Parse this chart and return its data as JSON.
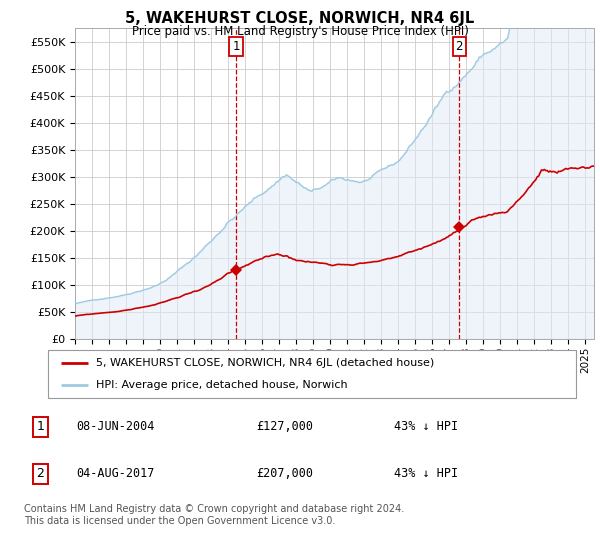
{
  "title": "5, WAKEHURST CLOSE, NORWICH, NR4 6JL",
  "subtitle": "Price paid vs. HM Land Registry's House Price Index (HPI)",
  "hpi_color": "#9ecae1",
  "hpi_fill_color": "#deebf7",
  "price_color": "#cc0000",
  "vline_color": "#cc0000",
  "ylim_min": 0,
  "ylim_max": 575000,
  "yticks": [
    0,
    50000,
    100000,
    150000,
    200000,
    250000,
    300000,
    350000,
    400000,
    450000,
    500000,
    550000
  ],
  "ytick_labels": [
    "£0",
    "£50K",
    "£100K",
    "£150K",
    "£200K",
    "£250K",
    "£300K",
    "£350K",
    "£400K",
    "£450K",
    "£500K",
    "£550K"
  ],
  "legend_entry1": "5, WAKEHURST CLOSE, NORWICH, NR4 6JL (detached house)",
  "legend_entry2": "HPI: Average price, detached house, Norwich",
  "table_row1": [
    "1",
    "08-JUN-2004",
    "£127,000",
    "43% ↓ HPI"
  ],
  "table_row2": [
    "2",
    "04-AUG-2017",
    "£207,000",
    "43% ↓ HPI"
  ],
  "footer": "Contains HM Land Registry data © Crown copyright and database right 2024.\nThis data is licensed under the Open Government Licence v3.0.",
  "grid_color": "#cccccc",
  "bg_color": "#ffffff",
  "sale1_x": 2004.458,
  "sale1_y": 127000,
  "sale2_x": 2017.583,
  "sale2_y": 207000,
  "xlim_min": 1995,
  "xlim_max": 2025.5,
  "start_year": 1995
}
